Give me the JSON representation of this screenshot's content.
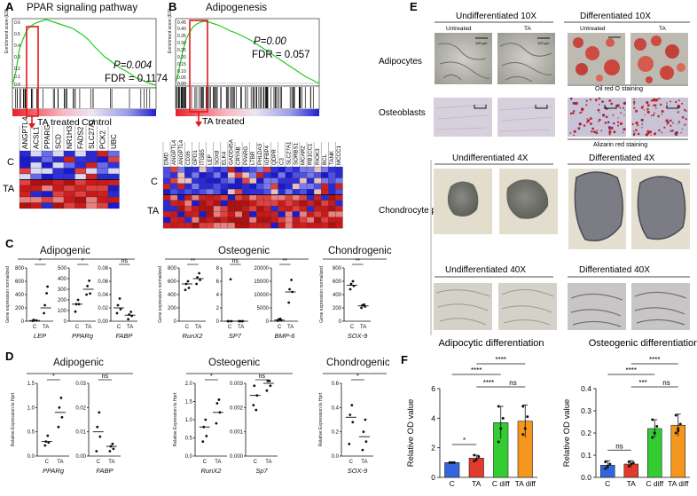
{
  "panel_letters": {
    "a": "A",
    "b": "B",
    "c": "C",
    "d": "D",
    "e": "E",
    "f": "F"
  },
  "gsea": [
    {
      "title": "PPAR signaling pathway",
      "stats_p": "P=0.004",
      "stats_fdr": "FDR = 0.1174",
      "y_label": "Enrichment score (ES)",
      "y_ticks": [
        "0.6",
        "0.5",
        "0.4",
        "0.3",
        "0.2",
        "0.1",
        "0.0"
      ],
      "left_label": "TA treated",
      "right_label": "Control",
      "row_labels": [
        "C",
        "TA"
      ],
      "genes": [
        "ANGPTL4",
        "ACSL1",
        "PPARG",
        "SCD",
        "NR1H3",
        "FADS2",
        "SLC27A1",
        "PCK2",
        "UBC"
      ],
      "colors": [
        "#1a1acc",
        "#2a2ad4",
        "#3030e0",
        "#6a6aef",
        "#d9d9f5",
        "#e04040",
        "#cf2020",
        "#e88080",
        "#cc1818",
        "#b01010"
      ]
    },
    {
      "title": "Adipogenesis",
      "stats_p": "P=0.00",
      "stats_fdr": "FDR = 0.057",
      "y_label": "Enrichment score (ES)",
      "y_ticks": [
        "0.45",
        "0.40",
        "0.35",
        "0.30",
        "0.25",
        "0.20",
        "0.15",
        "0.10",
        "0.05",
        "0.00"
      ],
      "left_label": "TA treated",
      "right_label": "",
      "row_labels": [
        "C",
        "TA"
      ],
      "genes": [
        "DMD",
        "ANGPTL4",
        "ANGPTL4",
        "CD36",
        "GPD1",
        "ITGB5",
        "LEP",
        "SOX8",
        "ELK4",
        "GADD45A",
        "CRYAB",
        "PPARG",
        "LTBR",
        "PHLDA3",
        "IGFBP4",
        "QDPR",
        "C3",
        "SLC27A1",
        "SORBS1",
        "MCAR2",
        "RB1CC1",
        "RIOK3",
        "BCL",
        "TANK",
        "MCCC1"
      ],
      "colors": [
        "#1a1acc",
        "#2a2ad4",
        "#3030e0",
        "#5050e8",
        "#7a7af0",
        "#e8c0c0",
        "#e04040",
        "#cf2020",
        "#e88080",
        "#cc1818",
        "#b01010"
      ]
    }
  ],
  "panel_c": {
    "group_labels": [
      "Adipogenic",
      "Osteogenic",
      "Chondrogenic"
    ],
    "y_label": "Gene expression normalized",
    "x_labels": [
      "C",
      "TA"
    ],
    "plots": [
      {
        "gene": "LEP",
        "sig": "*",
        "y_ticks": [
          "800",
          "600",
          "400",
          "200",
          "0"
        ],
        "ymax": 800,
        "c": [
          5,
          12,
          20
        ],
        "ta": [
          120,
          520,
          240,
          420
        ],
        "c_med": 10,
        "ta_med": 200
      },
      {
        "gene": "PPARg",
        "sig": "*",
        "y_ticks": [
          "500",
          "400",
          "300",
          "200",
          "100",
          "0"
        ],
        "ymax": 500,
        "c": [
          90,
          160,
          160,
          200
        ],
        "ta": [
          250,
          260,
          330,
          380
        ],
        "c_med": 160,
        "ta_med": 300
      },
      {
        "gene": "FABP",
        "sig": "ns",
        "y_ticks": [
          "0.08",
          "0.06",
          "0.04",
          "0.02",
          "0.00"
        ],
        "ymax": 0.08,
        "c": [
          0.012,
          0.018,
          0.024,
          0.034
        ],
        "ta": [
          0.003,
          0.008,
          0.01,
          0.014
        ],
        "c_med": 0.02,
        "ta_med": 0.009
      },
      {
        "gene": "RunX2",
        "sig": "**",
        "y_ticks": [
          "800",
          "600",
          "400",
          "200",
          "0"
        ],
        "ymax": 800,
        "c": [
          470,
          500,
          560,
          600
        ],
        "ta": [
          560,
          620,
          660,
          720
        ],
        "c_med": 560,
        "ta_med": 640
      },
      {
        "gene": "SP7",
        "sig": "ns",
        "y_ticks": [
          "8",
          "6",
          "4",
          "2",
          "0"
        ],
        "ymax": 8,
        "c": [
          0,
          0,
          0,
          6.3
        ],
        "ta": [
          0,
          0,
          0,
          0
        ],
        "c_med": 0,
        "ta_med": 0
      },
      {
        "gene": "BMP-6",
        "sig": "**",
        "y_ticks": [
          "20000",
          "15000",
          "10000",
          "5000",
          "0"
        ],
        "ymax": 20000,
        "c": [
          200,
          400,
          600,
          900
        ],
        "ta": [
          7000,
          11000,
          12000,
          15500
        ],
        "c_med": 400,
        "ta_med": 11000
      },
      {
        "gene": "SOX-9",
        "sig": "**",
        "y_ticks": [
          "800",
          "600",
          "400",
          "200",
          "0"
        ],
        "ymax": 800,
        "c": [
          480,
          530,
          560,
          600
        ],
        "ta": [
          200,
          220,
          240,
          250
        ],
        "c_med": 540,
        "ta_med": 230
      }
    ]
  },
  "panel_d": {
    "group_labels": [
      "Adipogenic",
      "Osteogenic",
      "Chondrogenic"
    ],
    "y_label": "Relative Expression to Hprt",
    "x_labels": [
      "C",
      "TA"
    ],
    "plots": [
      {
        "gene": "PPARg",
        "sig": "*",
        "y_ticks": [
          "1.5",
          "1.0",
          "0.5",
          "0.0"
        ],
        "ymax": 1.5,
        "c": [
          0.22,
          0.28,
          0.3,
          0.42
        ],
        "ta": [
          0.6,
          0.8,
          1.0,
          1.2
        ],
        "c_med": 0.3,
        "ta_med": 0.9
      },
      {
        "gene": "FABP",
        "sig": "ns",
        "y_ticks": [
          "0.03",
          "0.02",
          "0.01",
          "0.00"
        ],
        "ymax": 0.03,
        "c": [
          0.002,
          0.008,
          0.012,
          0.018
        ],
        "ta": [
          0.002,
          0.003,
          0.004,
          0.005
        ],
        "c_med": 0.01,
        "ta_med": 0.004
      },
      {
        "gene": "RunX2",
        "sig": "*",
        "y_ticks": [
          "2.0",
          "1.5",
          "1.0",
          "0.5",
          "0.0"
        ],
        "ymax": 2.0,
        "c": [
          0.4,
          0.55,
          0.8,
          1.0
        ],
        "ta": [
          0.9,
          1.2,
          1.45,
          1.55
        ],
        "c_med": 0.8,
        "ta_med": 1.2
      },
      {
        "gene": "Sp7",
        "sig": "ns",
        "y_ticks": [
          "0.003",
          "0.002",
          "0.001",
          "0.000"
        ],
        "ymax": 0.003,
        "c": [
          0.0021,
          0.0025,
          0.0029,
          0.0019
        ],
        "ta": [
          0.0027,
          0.0029,
          0.0031,
          0.0031
        ],
        "c_med": 0.0025,
        "ta_med": 0.003
      },
      {
        "gene": "SOX-9",
        "sig": "*",
        "y_ticks": [
          "0.6",
          "0.4",
          "0.2",
          "0.0"
        ],
        "ymax": 0.6,
        "c": [
          0.1,
          0.28,
          0.34,
          0.42
        ],
        "ta": [
          0.05,
          0.12,
          0.2,
          0.3
        ],
        "c_med": 0.32,
        "ta_med": 0.16
      }
    ]
  },
  "panel_e": {
    "col_headers": [
      "Undifferentiated 10X",
      "Differentiated 10X"
    ],
    "sub_headers": [
      "Untreated",
      "TA",
      "Untreated",
      "TA"
    ],
    "row_labels": [
      "Adipocytes",
      "Osteoblasts",
      "Chondrocyte pellet"
    ],
    "stain_labels": [
      "Oil red O staining",
      "Alizarin red staining"
    ],
    "pellet_headers_4x": [
      "Undifferentiated 4X",
      "Differentiated 4X"
    ],
    "pellet_headers_40x": [
      "Undifferentiated 40X",
      "Differentiated 40X"
    ],
    "scale_labels": [
      "100 µm",
      "50 µm"
    ]
  },
  "chart_data": [
    {
      "type": "bar",
      "title": "Adipocytic differentiation",
      "categories": [
        "C",
        "TA",
        "C diff",
        "TA diff"
      ],
      "values": [
        1.0,
        1.3,
        3.7,
        3.8
      ],
      "errors": [
        0.05,
        0.2,
        1.1,
        1.1
      ],
      "points": [
        [
          1.0,
          1.0,
          1.0,
          1.0
        ],
        [
          1.1,
          1.2,
          1.4,
          1.5
        ],
        [
          2.4,
          3.3,
          4.0,
          4.8
        ],
        [
          2.9,
          3.3,
          4.1,
          4.8
        ]
      ],
      "colors": [
        "#3366dd",
        "#e23b2e",
        "#33cc33",
        "#f5961e"
      ],
      "ylabel": "Relative OD value",
      "ylim": [
        0,
        6
      ],
      "y_ticks": [
        "0",
        "2",
        "4",
        "6"
      ],
      "significance": [
        {
          "pair": [
            "C",
            "TA"
          ],
          "label": "*"
        },
        {
          "pair": [
            "TA",
            "C diff"
          ],
          "label": "****"
        },
        {
          "pair": [
            "C diff",
            "TA diff"
          ],
          "label": "ns"
        },
        {
          "pair": [
            "C",
            "C diff"
          ],
          "label": "****"
        },
        {
          "pair": [
            "TA",
            "TA diff"
          ],
          "label": "****"
        }
      ]
    },
    {
      "type": "bar",
      "title": "Osteogenic differentiation",
      "categories": [
        "C",
        "TA",
        "C diff",
        "TA diff"
      ],
      "values": [
        0.055,
        0.06,
        0.22,
        0.235
      ],
      "errors": [
        0.02,
        0.015,
        0.04,
        0.05
      ],
      "points": [
        [
          0.04,
          0.05,
          0.06,
          0.07
        ],
        [
          0.05,
          0.06,
          0.065,
          0.07
        ],
        [
          0.18,
          0.2,
          0.23,
          0.26,
          0.2
        ],
        [
          0.2,
          0.22,
          0.24,
          0.28,
          0.21
        ]
      ],
      "colors": [
        "#3366dd",
        "#e23b2e",
        "#33cc33",
        "#f5961e"
      ],
      "ylabel": "Relative OD value",
      "ylim": [
        0,
        0.4
      ],
      "y_ticks": [
        "0.0",
        "0.1",
        "0.2",
        "0.3",
        "0.4"
      ],
      "significance": [
        {
          "pair": [
            "C",
            "TA"
          ],
          "label": "ns"
        },
        {
          "pair": [
            "TA",
            "C diff"
          ],
          "label": "***"
        },
        {
          "pair": [
            "C diff",
            "TA diff"
          ],
          "label": "ns"
        },
        {
          "pair": [
            "C",
            "C diff"
          ],
          "label": "****"
        },
        {
          "pair": [
            "TA",
            "TA diff"
          ],
          "label": "****"
        }
      ]
    }
  ]
}
